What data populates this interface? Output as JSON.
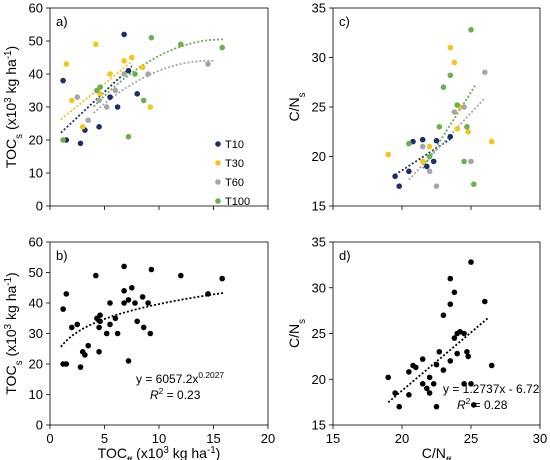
{
  "colors": {
    "T10": "#1c2f6b",
    "T30": "#f5c518",
    "T60": "#a6a6a6",
    "T100": "#6ab04c",
    "black": "#000000"
  },
  "chart_data": [
    {
      "panel_label": "a)",
      "type": "scatter",
      "xlabel": "",
      "ylabel_main": "TOC",
      "ylabel_sub": "s",
      "ylabel_unit_open": " (x10",
      "ylabel_unit_sup": "3",
      "ylabel_unit_kg": " kg ha",
      "ylabel_unit_sup2": "-1",
      "ylabel_unit_close": ")",
      "xlim": [
        0,
        20
      ],
      "ylim": [
        0,
        60
      ],
      "xticks": [
        "0",
        "5",
        "10",
        "15",
        "20"
      ],
      "yticks": [
        "0",
        "10",
        "20",
        "30",
        "40",
        "50",
        "60"
      ],
      "show_xticklabels": false,
      "legend_position": "right",
      "series": [
        {
          "name": "T10",
          "color_key": "T10",
          "points": [
            [
              1.2,
              38
            ],
            [
              1.5,
              20
            ],
            [
              2.8,
              19
            ],
            [
              3.2,
              23
            ],
            [
              4.5,
              24
            ],
            [
              5.5,
              33
            ],
            [
              6.2,
              30
            ],
            [
              6.8,
              52
            ],
            [
              7.2,
              41
            ],
            [
              8,
              34
            ]
          ],
          "trend": {
            "kind": "linear",
            "xs": [
              1,
              7.5
            ],
            "a": 3.1,
            "b": 19.1
          }
        },
        {
          "name": "T30",
          "color_key": "T30",
          "points": [
            [
              1.5,
              43
            ],
            [
              2,
              32
            ],
            [
              3,
              24
            ],
            [
              4.2,
              49
            ],
            [
              4.6,
              34
            ],
            [
              5.5,
              40
            ],
            [
              6.8,
              44
            ],
            [
              7.5,
              45
            ],
            [
              8.5,
              42
            ],
            [
              9.2,
              30
            ]
          ],
          "trend": {
            "kind": "linear",
            "xs": [
              1,
              7.5
            ],
            "a": 2.7,
            "b": 23.5
          }
        },
        {
          "name": "T60",
          "color_key": "T60",
          "points": [
            [
              2.5,
              33
            ],
            [
              3.5,
              26
            ],
            [
              4.5,
              32
            ],
            [
              5.2,
              30
            ],
            [
              6,
              35
            ],
            [
              6.8,
              40
            ],
            [
              9,
              40
            ],
            [
              14.5,
              43
            ]
          ],
          "trend": {
            "kind": "quad",
            "xs": [
              4,
              15
            ],
            "a": 14.0,
            "b": 4.1,
            "c": -0.14
          }
        },
        {
          "name": "T100",
          "color_key": "T100",
          "points": [
            [
              1.2,
              20
            ],
            [
              4.3,
              35
            ],
            [
              4.6,
              36
            ],
            [
              7.2,
              21
            ],
            [
              7.8,
              40
            ],
            [
              8.6,
              32
            ],
            [
              9.3,
              51
            ],
            [
              12,
              49
            ],
            [
              15.8,
              48
            ]
          ],
          "trend": {
            "kind": "quad",
            "xs": [
              4,
              16
            ],
            "a": 14.0,
            "b": 4.6,
            "c": -0.145
          }
        }
      ]
    },
    {
      "panel_label": "b)",
      "type": "scatter",
      "xlabel_main": "TOC",
      "xlabel_sub": "ff",
      "xlabel_unit_open": " (x10",
      "xlabel_unit_sup": "3",
      "xlabel_unit_kg": " kg ha",
      "xlabel_unit_sup2": "-1",
      "xlabel_unit_close": ")",
      "ylabel_main": "TOC",
      "ylabel_sub": "s",
      "ylabel_unit_open": " (x10",
      "ylabel_unit_sup": "3",
      "ylabel_unit_kg": " kg ha",
      "ylabel_unit_sup2": "-1",
      "ylabel_unit_close": ")",
      "xlim": [
        0,
        20
      ],
      "ylim": [
        0,
        60
      ],
      "xticks": [
        "0",
        "5",
        "10",
        "15",
        "20"
      ],
      "yticks": [
        "0",
        "10",
        "20",
        "30",
        "40",
        "50",
        "60"
      ],
      "show_xticklabels": true,
      "equation": "y = 6057.2x",
      "equation_exp": "0.2027",
      "r2_label": "R",
      "r2_sup": "2",
      "r2_value": " = 0.23",
      "series": [
        {
          "name": "",
          "color_key": "black",
          "points": [
            [
              1.2,
              38
            ],
            [
              1.5,
              20
            ],
            [
              2.8,
              19
            ],
            [
              3.2,
              23
            ],
            [
              4.5,
              24
            ],
            [
              5.5,
              33
            ],
            [
              6.2,
              30
            ],
            [
              6.8,
              52
            ],
            [
              7.2,
              41
            ],
            [
              8,
              34
            ],
            [
              1.5,
              43
            ],
            [
              2,
              32
            ],
            [
              3,
              24
            ],
            [
              4.2,
              49
            ],
            [
              4.6,
              34
            ],
            [
              5.5,
              40
            ],
            [
              6.8,
              44
            ],
            [
              7.5,
              45
            ],
            [
              8.5,
              42
            ],
            [
              9.2,
              30
            ],
            [
              2.5,
              33
            ],
            [
              3.5,
              26
            ],
            [
              4.5,
              32
            ],
            [
              5.2,
              30
            ],
            [
              6,
              35
            ],
            [
              6.8,
              40
            ],
            [
              9,
              40
            ],
            [
              14.5,
              43
            ],
            [
              1.2,
              20
            ],
            [
              4.3,
              35
            ],
            [
              4.6,
              36
            ],
            [
              7.2,
              21
            ],
            [
              7.8,
              40
            ],
            [
              8.6,
              32
            ],
            [
              9.3,
              51
            ],
            [
              12,
              49
            ],
            [
              15.8,
              48
            ]
          ],
          "trend": {
            "kind": "power",
            "xs": [
              1,
              16
            ],
            "a": 25.6,
            "b": 0.19
          }
        }
      ]
    },
    {
      "panel_label": "c)",
      "type": "scatter",
      "xlabel": "",
      "ylabel_main": "C/N",
      "ylabel_sub": "s",
      "xlim": [
        15,
        30
      ],
      "ylim": [
        15,
        35
      ],
      "xticks": [
        "15",
        "20",
        "25",
        "30"
      ],
      "yticks": [
        "15",
        "20",
        "25",
        "30",
        "35"
      ],
      "show_xticklabels": false,
      "series": [
        {
          "name": "T10",
          "color_key": "T10",
          "points": [
            [
              19.5,
              18
            ],
            [
              19.8,
              17
            ],
            [
              20.5,
              18.5
            ],
            [
              20.8,
              21.5
            ],
            [
              21.5,
              21.7
            ],
            [
              22.5,
              21.6
            ],
            [
              21.8,
              19
            ],
            [
              22.3,
              19.5
            ],
            [
              23.5,
              22
            ]
          ],
          "trend": {
            "kind": "linear",
            "xs": [
              19.5,
              23.5
            ],
            "a": 0.9,
            "b": 0.6
          }
        },
        {
          "name": "T30",
          "color_key": "T30",
          "points": [
            [
              19,
              20.2
            ],
            [
              21.5,
              19.5
            ],
            [
              22,
              21
            ],
            [
              23.5,
              31
            ],
            [
              23.8,
              29.5
            ],
            [
              24.2,
              25
            ],
            [
              24.8,
              22.5
            ],
            [
              26.5,
              21.5
            ],
            [
              24,
              22.8
            ]
          ],
          "trend": null
        },
        {
          "name": "T60",
          "color_key": "T60",
          "points": [
            [
              21.5,
              21
            ],
            [
              22,
              18.5
            ],
            [
              22.5,
              17
            ],
            [
              23.8,
              24.5
            ],
            [
              24.5,
              25
            ],
            [
              25,
              19.5
            ],
            [
              26,
              28.5
            ]
          ],
          "trend": {
            "kind": "linear",
            "xs": [
              20.5,
              26
            ],
            "a": 1.5,
            "b": -13.1
          }
        },
        {
          "name": "T100",
          "color_key": "T100",
          "points": [
            [
              20.5,
              21.3
            ],
            [
              22,
              20
            ],
            [
              22.7,
              23
            ],
            [
              23,
              27
            ],
            [
              23.5,
              28.2
            ],
            [
              24,
              25.2
            ],
            [
              24.5,
              19.5
            ],
            [
              24.7,
              23
            ],
            [
              25,
              32.8
            ],
            [
              25.2,
              17.2
            ]
          ],
          "trend": {
            "kind": "linear",
            "xs": [
              21.5,
              25.3
            ],
            "a": 2.2,
            "b": -28.5
          }
        }
      ]
    },
    {
      "panel_label": "d)",
      "type": "scatter",
      "xlabel_main": "C/N",
      "xlabel_sub": "ff",
      "ylabel_main": "C/N",
      "ylabel_sub": "s",
      "xlim": [
        15,
        30
      ],
      "ylim": [
        15,
        35
      ],
      "xticks": [
        "15",
        "20",
        "25",
        "30"
      ],
      "yticks": [
        "15",
        "20",
        "25",
        "30",
        "35"
      ],
      "show_xticklabels": true,
      "equation": "y = 1.2737x - 6.72",
      "equation_exp": "",
      "r2_label": "R",
      "r2_sup": "2",
      "r2_value": " = 0.28",
      "series": [
        {
          "name": "",
          "color_key": "black",
          "points": [
            [
              19,
              20.2
            ],
            [
              19.5,
              18.5
            ],
            [
              19.8,
              17
            ],
            [
              20.5,
              18.3
            ],
            [
              20.5,
              20.8
            ],
            [
              20.8,
              21.5
            ],
            [
              21,
              21.3
            ],
            [
              21.5,
              19.5
            ],
            [
              21.5,
              22.2
            ],
            [
              21.8,
              19
            ],
            [
              22,
              18.5
            ],
            [
              22,
              20.2
            ],
            [
              22.3,
              19.5
            ],
            [
              22.5,
              17
            ],
            [
              22.5,
              21.6
            ],
            [
              22.7,
              23
            ],
            [
              23,
              21
            ],
            [
              23,
              27
            ],
            [
              23.5,
              31
            ],
            [
              23.5,
              28.2
            ],
            [
              23.5,
              22
            ],
            [
              23.8,
              29.5
            ],
            [
              23.8,
              24.5
            ],
            [
              24,
              25
            ],
            [
              24,
              22.8
            ],
            [
              24.2,
              25.2
            ],
            [
              24.5,
              25
            ],
            [
              24.5,
              19.5
            ],
            [
              24.7,
              23
            ],
            [
              24.8,
              22.5
            ],
            [
              25,
              32.8
            ],
            [
              25,
              19.5
            ],
            [
              25.2,
              17.2
            ],
            [
              26,
              28.5
            ],
            [
              26.5,
              21.5
            ]
          ],
          "trend": {
            "kind": "linear",
            "xs": [
              19,
              26.2
            ],
            "a": 1.2737,
            "b": -6.72
          }
        }
      ]
    }
  ]
}
